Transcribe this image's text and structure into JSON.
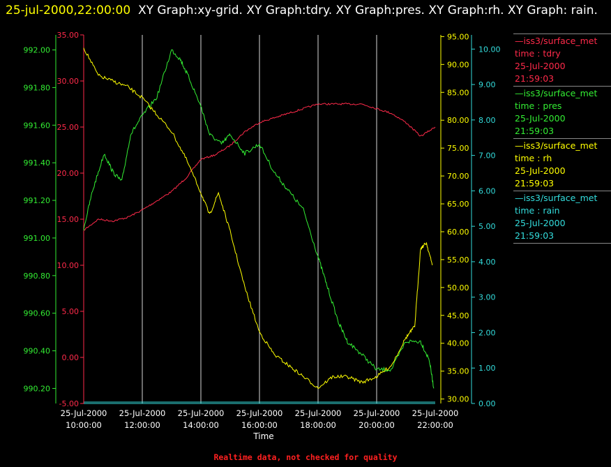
{
  "header": {
    "timestamp": "25-jul-2000,22:00:00",
    "titles": "XY Graph:xy-grid.  XY Graph:tdry.  XY Graph:pres.  XY Graph:rh.  XY Graph: rain."
  },
  "footer": "Realtime data, not checked for quality",
  "colors": {
    "tdry": "#ff2a4a",
    "pres": "#33ee33",
    "rh": "#ffff00",
    "rain": "#33dddd",
    "grid": "#ffffff",
    "axis_text": "#ffffff"
  },
  "legend": [
    {
      "key": "tdry",
      "line1": "iss3/surface_met",
      "line2": "time : tdry",
      "line3": "25-Jul-2000",
      "line4": "21:59:03"
    },
    {
      "key": "pres",
      "line1": "iss3/surface_met",
      "line2": "time : pres",
      "line3": "25-Jul-2000",
      "line4": "21:59:03"
    },
    {
      "key": "rh",
      "line1": "iss3/surface_met",
      "line2": "time : rh",
      "line3": "25-Jul-2000",
      "line4": "21:59:03"
    },
    {
      "key": "rain",
      "line1": "iss3/surface_met",
      "line2": "time : rain",
      "line3": "25-Jul-2000",
      "line4": "21:59:03"
    }
  ],
  "chart_data": {
    "type": "line",
    "xlabel": "Time",
    "x_range_hours": [
      10,
      22
    ],
    "x_ticks": [
      {
        "hour": 10,
        "line1": "25-Jul-2000",
        "line2": "10:00:00"
      },
      {
        "hour": 12,
        "line1": "25-Jul-2000",
        "line2": "12:00:00"
      },
      {
        "hour": 14,
        "line1": "25-Jul-2000",
        "line2": "14:00:00"
      },
      {
        "hour": 16,
        "line1": "25-Jul-2000",
        "line2": "16:00:00"
      },
      {
        "hour": 18,
        "line1": "25-Jul-2000",
        "line2": "18:00:00"
      },
      {
        "hour": 20,
        "line1": "25-Jul-2000",
        "line2": "20:00:00"
      },
      {
        "hour": 22,
        "line1": "25-Jul-2000",
        "line2": "22:00:00"
      }
    ],
    "grid": true,
    "axes": {
      "pres": {
        "min": 990.12,
        "max": 992.08,
        "ticks": [
          "990.20",
          "990.40",
          "990.60",
          "990.80",
          "991.00",
          "991.20",
          "991.40",
          "991.60",
          "991.80",
          "992.00"
        ]
      },
      "tdry": {
        "min": -5,
        "max": 35,
        "ticks": [
          "-5.00",
          "0.00",
          "5.00",
          "10.00",
          "15.00",
          "20.00",
          "25.00",
          "30.00",
          "35.00"
        ]
      },
      "rh": {
        "min": 29.2,
        "max": 95.3,
        "ticks": [
          "30.00",
          "35.00",
          "40.00",
          "45.00",
          "50.00",
          "55.00",
          "60.00",
          "65.00",
          "70.00",
          "75.00",
          "80.00",
          "85.00",
          "90.00",
          "95.00"
        ]
      },
      "rain": {
        "min": 0,
        "max": 10.4,
        "ticks": [
          "0.00",
          "1.00",
          "2.00",
          "3.00",
          "4.00",
          "5.00",
          "6.00",
          "7.00",
          "8.00",
          "9.00",
          "10.00"
        ]
      }
    },
    "series": [
      {
        "key": "tdry",
        "x": [
          10,
          10.5,
          11,
          11.5,
          12,
          12.5,
          13,
          13.5,
          14,
          14.5,
          15,
          15.5,
          16,
          16.5,
          17,
          17.5,
          18,
          18.5,
          19,
          19.5,
          20,
          20.5,
          21,
          21.5,
          22
        ],
        "y": [
          13.8,
          15.0,
          14.8,
          15.2,
          16.0,
          17.0,
          18.0,
          19.5,
          21.5,
          22.0,
          23.0,
          24.5,
          25.5,
          26.0,
          26.5,
          27.0,
          27.5,
          27.5,
          27.5,
          27.5,
          27.0,
          26.5,
          25.5,
          24.0,
          25.0
        ]
      },
      {
        "key": "pres",
        "x": [
          10,
          10.3,
          10.7,
          11,
          11.3,
          11.6,
          12,
          12.5,
          13,
          13.3,
          13.6,
          14,
          14.3,
          14.7,
          15,
          15.5,
          16,
          16.5,
          17,
          17.5,
          18,
          18.3,
          18.7,
          19,
          19.5,
          20,
          20.5,
          21,
          21.5,
          21.8,
          21.95
        ],
        "y": [
          991.05,
          991.25,
          991.45,
          991.35,
          991.3,
          991.55,
          991.65,
          991.75,
          992.0,
          991.95,
          991.85,
          991.7,
          991.55,
          991.5,
          991.55,
          991.45,
          991.5,
          991.35,
          991.25,
          991.15,
          990.9,
          990.75,
          990.55,
          990.45,
          990.38,
          990.3,
          990.3,
          990.45,
          990.45,
          990.35,
          990.2
        ]
      },
      {
        "key": "rh",
        "x": [
          10,
          10.5,
          11,
          11.5,
          12,
          12.5,
          13,
          13.5,
          14,
          14.3,
          14.6,
          15,
          15.5,
          16,
          16.5,
          17,
          17.5,
          18,
          18.5,
          19,
          19.5,
          20,
          20.5,
          21,
          21.3,
          21.5,
          21.7,
          21.9
        ],
        "y": [
          93,
          88,
          87,
          86,
          84,
          81,
          78,
          73,
          67,
          63,
          67,
          60,
          50,
          42,
          38,
          36,
          34,
          32,
          34,
          34,
          33,
          34,
          36,
          41,
          43,
          57,
          58,
          54
        ]
      },
      {
        "key": "rain",
        "x": [
          10,
          22
        ],
        "y": [
          0,
          0
        ]
      }
    ]
  }
}
